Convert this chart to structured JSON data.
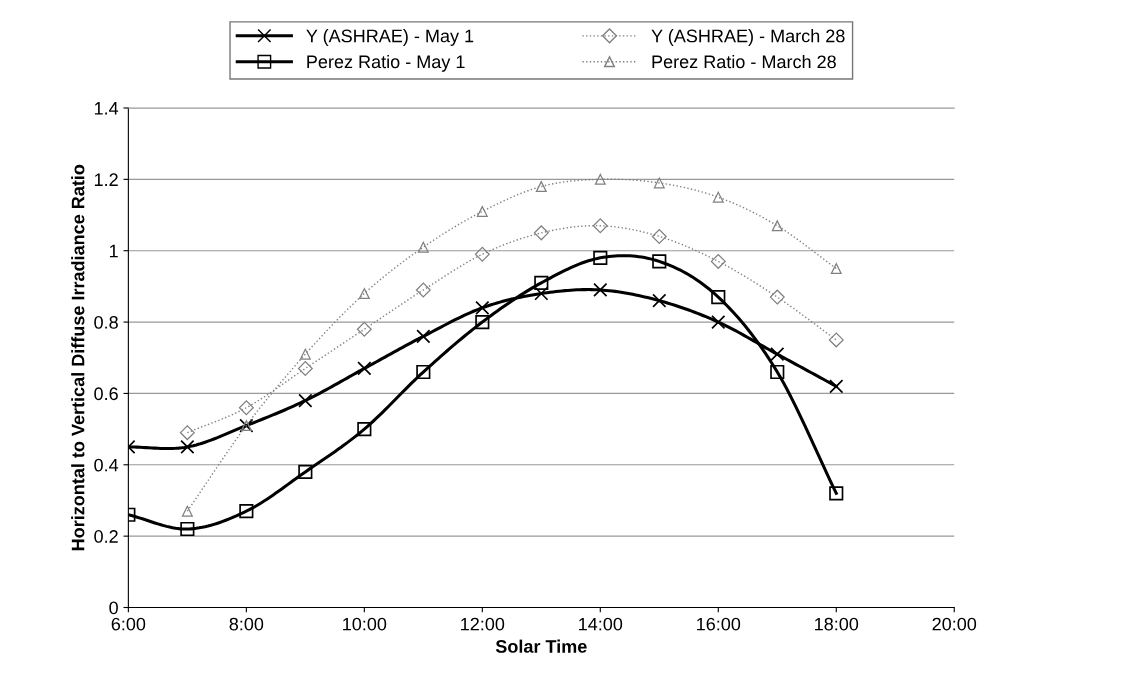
{
  "chart_data": {
    "type": "line",
    "xlabel": "Solar Time",
    "ylabel": "Horizontal to Vertical Diffuse Irradiance Ratio",
    "xlim": [
      6,
      20
    ],
    "xticks": [
      {
        "value": 6,
        "label": "6:00"
      },
      {
        "value": 8,
        "label": "8:00"
      },
      {
        "value": 10,
        "label": "10:00"
      },
      {
        "value": 12,
        "label": "12:00"
      },
      {
        "value": 14,
        "label": "14:00"
      },
      {
        "value": 16,
        "label": "16:00"
      },
      {
        "value": 18,
        "label": "18:00"
      },
      {
        "value": 20,
        "label": "20:00"
      }
    ],
    "ylim": [
      0,
      1.4
    ],
    "yticks": [
      0,
      0.2,
      0.4,
      0.6,
      0.8,
      1,
      1.2,
      1.4
    ],
    "grid": "y",
    "legend": "top",
    "series": [
      {
        "name": "Y (ASHRAE) - May 1",
        "color": "#000000",
        "marker": "cross",
        "line_style": "solid",
        "x": [
          6,
          7,
          8,
          9,
          10,
          11,
          12,
          13,
          14,
          15,
          16,
          17,
          18
        ],
        "values": [
          0.45,
          0.45,
          0.51,
          0.58,
          0.67,
          0.76,
          0.84,
          0.88,
          0.89,
          0.86,
          0.8,
          0.71,
          0.62
        ]
      },
      {
        "name": "Perez Ratio - May 1",
        "color": "#000000",
        "marker": "square",
        "line_style": "solid",
        "x": [
          6,
          7,
          8,
          9,
          10,
          11,
          12,
          13,
          14,
          15,
          16,
          17,
          18
        ],
        "values": [
          0.26,
          0.22,
          0.27,
          0.38,
          0.5,
          0.66,
          0.8,
          0.91,
          0.98,
          0.97,
          0.87,
          0.66,
          0.32
        ]
      },
      {
        "name": "Y (ASHRAE) - March 28",
        "color": "#808080",
        "marker": "diamond",
        "line_style": "dotted",
        "x": [
          7,
          8,
          9,
          10,
          11,
          12,
          13,
          14,
          15,
          16,
          17,
          18
        ],
        "values": [
          0.49,
          0.56,
          0.67,
          0.78,
          0.89,
          0.99,
          1.05,
          1.07,
          1.04,
          0.97,
          0.87,
          0.75
        ]
      },
      {
        "name": "Perez Ratio - March 28",
        "color": "#808080",
        "marker": "triangle",
        "line_style": "dotted",
        "x": [
          7,
          8,
          9,
          10,
          11,
          12,
          13,
          14,
          15,
          16,
          17,
          18
        ],
        "values": [
          0.27,
          0.51,
          0.71,
          0.88,
          1.01,
          1.11,
          1.18,
          1.2,
          1.19,
          1.15,
          1.07,
          0.95
        ]
      }
    ]
  }
}
